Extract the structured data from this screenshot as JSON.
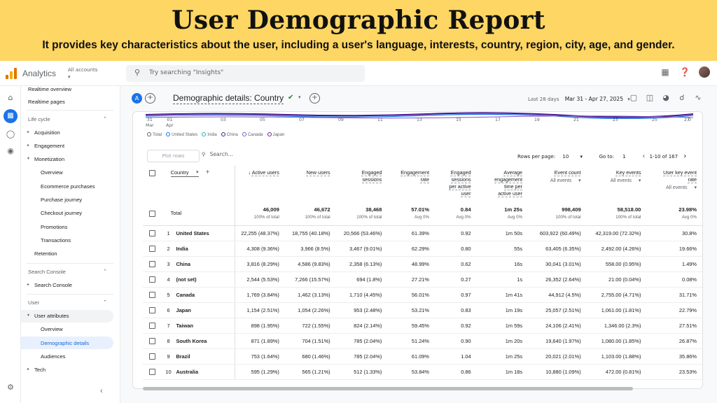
{
  "banner": {
    "title": "User Demographic Report",
    "subtitle": "It provides key characteristics about the user, including a user's language, interests, country, region, city, age, and gender."
  },
  "appbar": {
    "app_name": "Analytics",
    "account_label": "All accounts",
    "search_placeholder": "Try searching \"Insights\""
  },
  "sidebar": {
    "realtime_overview": "Realtime overview",
    "realtime_pages": "Realtime pages",
    "life_cycle": "Life cycle",
    "acquisition": "Acquisition",
    "engagement": "Engagement",
    "monetization": "Monetization",
    "overview1": "Overview",
    "ecommerce": "Ecommerce purchases",
    "purchase_journey": "Purchase journey",
    "checkout_journey": "Checkout journey",
    "promotions": "Promotions",
    "transactions": "Transactions",
    "retention": "Retention",
    "search_console_sec": "Search Console",
    "search_console": "Search Console",
    "user_sec": "User",
    "user_attributes": "User attributes",
    "overview2": "Overview",
    "demographic_details": "Demographic details",
    "audiences": "Audiences",
    "tech": "Tech"
  },
  "header": {
    "circle_label": "A",
    "title": "Demographic details: Country",
    "date_label": "Last 28 days",
    "date_range": "Mar 31 - Apr 27, 2025"
  },
  "chart": {
    "x_labels": [
      {
        "l1": "31",
        "l2": "Mar"
      },
      {
        "l1": "01",
        "l2": "Apr"
      },
      {
        "l1": "03",
        "l2": ""
      },
      {
        "l1": "05",
        "l2": ""
      },
      {
        "l1": "07",
        "l2": ""
      },
      {
        "l1": "09",
        "l2": ""
      },
      {
        "l1": "11",
        "l2": ""
      },
      {
        "l1": "13",
        "l2": ""
      },
      {
        "l1": "15",
        "l2": ""
      },
      {
        "l1": "17",
        "l2": ""
      },
      {
        "l1": "19",
        "l2": ""
      },
      {
        "l1": "21",
        "l2": ""
      },
      {
        "l1": "23",
        "l2": ""
      },
      {
        "l1": "25",
        "l2": ""
      },
      {
        "l1": "27",
        "l2": ""
      }
    ],
    "y_right_label": "0",
    "legend": [
      {
        "name": "Total",
        "color": "#5f6368"
      },
      {
        "name": "United States",
        "color": "#1a73e8"
      },
      {
        "name": "India",
        "color": "#12b5cb"
      },
      {
        "name": "China",
        "color": "#4a148c"
      },
      {
        "name": "Canada",
        "color": "#7e57c2"
      },
      {
        "name": "Japan",
        "color": "#6a1b9a"
      }
    ]
  },
  "toolbar": {
    "plot_rows": "Plot rows",
    "search_placeholder": "Search...",
    "rows_per_page_label": "Rows per page:",
    "rows_per_page": "10",
    "goto_label": "Go to:",
    "goto_value": "1",
    "range": "1-10 of 167"
  },
  "table": {
    "dimension": "Country",
    "columns": {
      "active_users": "Active users",
      "new_users": "New users",
      "engaged_sessions_1": "Engaged",
      "engaged_sessions_2": "sessions",
      "engagement_rate_1": "Engagement",
      "engagement_rate_2": "rate",
      "esp_1": "Engaged",
      "esp_2": "sessions",
      "esp_3": "per active",
      "esp_4": "user",
      "aet_1": "Average",
      "aet_2": "engagement",
      "aet_3": "time per",
      "aet_4": "active user",
      "event_count": "Event count",
      "key_events": "Key events",
      "ukr_1": "User key event",
      "ukr_2": "rate",
      "all_events": "All events"
    },
    "total": {
      "label": "Total",
      "active_users": "46,009",
      "active_users_sub": "100% of total",
      "new_users": "46,672",
      "new_users_sub": "100% of total",
      "engaged_sessions": "38,468",
      "engaged_sessions_sub": "100% of total",
      "engagement_rate": "57.01%",
      "engagement_rate_sub": "Avg 0%",
      "esp": "0.84",
      "esp_sub": "Avg 0%",
      "aet": "1m 25s",
      "aet_sub": "Avg 0%",
      "event_count": "998,409",
      "event_count_sub": "100% of total",
      "key_events": "58,518.00",
      "key_events_sub": "100% of total",
      "ukr": "23.98%",
      "ukr_sub": "Avg 0%"
    },
    "rows": [
      {
        "idx": "1",
        "country": "United States",
        "au": "22,255 (48.37%)",
        "nu": "18,755 (40.18%)",
        "es": "20,566 (53.46%)",
        "er": "61.39%",
        "esp": "0.92",
        "aet": "1m 50s",
        "ec": "603,922 (60.49%)",
        "ke": "42,319.00 (72.32%)",
        "ukr": "30.8%"
      },
      {
        "idx": "2",
        "country": "India",
        "au": "4,308 (9.36%)",
        "nu": "3,966 (8.5%)",
        "es": "3,467 (9.01%)",
        "er": "62.29%",
        "esp": "0.80",
        "aet": "55s",
        "ec": "63,405 (6.35%)",
        "ke": "2,492.00 (4.26%)",
        "ukr": "19.66%"
      },
      {
        "idx": "3",
        "country": "China",
        "au": "3,816 (8.29%)",
        "nu": "4,586 (9.83%)",
        "es": "2,358 (6.13%)",
        "er": "48.99%",
        "esp": "0.62",
        "aet": "16s",
        "ec": "30,041 (3.01%)",
        "ke": "558.00 (0.95%)",
        "ukr": "1.49%"
      },
      {
        "idx": "4",
        "country": "(not set)",
        "au": "2,544 (5.53%)",
        "nu": "7,266 (15.57%)",
        "es": "694 (1.8%)",
        "er": "27.21%",
        "esp": "0.27",
        "aet": "1s",
        "ec": "26,352 (2.64%)",
        "ke": "21.00 (0.04%)",
        "ukr": "0.08%"
      },
      {
        "idx": "5",
        "country": "Canada",
        "au": "1,769 (3.84%)",
        "nu": "1,462 (3.13%)",
        "es": "1,710 (4.45%)",
        "er": "56.01%",
        "esp": "0.97",
        "aet": "1m 41s",
        "ec": "44,912 (4.5%)",
        "ke": "2,755.00 (4.71%)",
        "ukr": "31.71%"
      },
      {
        "idx": "6",
        "country": "Japan",
        "au": "1,154 (2.51%)",
        "nu": "1,054 (2.26%)",
        "es": "953 (2.48%)",
        "er": "53.21%",
        "esp": "0.83",
        "aet": "1m 19s",
        "ec": "25,057 (2.51%)",
        "ke": "1,061.00 (1.81%)",
        "ukr": "22.79%"
      },
      {
        "idx": "7",
        "country": "Taiwan",
        "au": "898 (1.95%)",
        "nu": "722 (1.55%)",
        "es": "824 (2.14%)",
        "er": "59.45%",
        "esp": "0.92",
        "aet": "1m 59s",
        "ec": "24,106 (2.41%)",
        "ke": "1,346.00 (2.3%)",
        "ukr": "27.51%"
      },
      {
        "idx": "8",
        "country": "South Korea",
        "au": "871 (1.89%)",
        "nu": "704 (1.51%)",
        "es": "785 (2.04%)",
        "er": "51.24%",
        "esp": "0.90",
        "aet": "1m 20s",
        "ec": "19,640 (1.97%)",
        "ke": "1,080.00 (1.85%)",
        "ukr": "26.87%"
      },
      {
        "idx": "9",
        "country": "Brazil",
        "au": "753 (1.64%)",
        "nu": "680 (1.46%)",
        "es": "785 (2.04%)",
        "er": "61.09%",
        "esp": "1.04",
        "aet": "1m 25s",
        "ec": "20,021 (2.01%)",
        "ke": "1,103.00 (1.88%)",
        "ukr": "35.86%"
      },
      {
        "idx": "10",
        "country": "Australia",
        "au": "595 (1.29%)",
        "nu": "565 (1.21%)",
        "es": "512 (1.33%)",
        "er": "53.84%",
        "esp": "0.86",
        "aet": "1m 18s",
        "ec": "10,880 (1.09%)",
        "ke": "472.00 (0.81%)",
        "ukr": "23.53%"
      }
    ]
  }
}
